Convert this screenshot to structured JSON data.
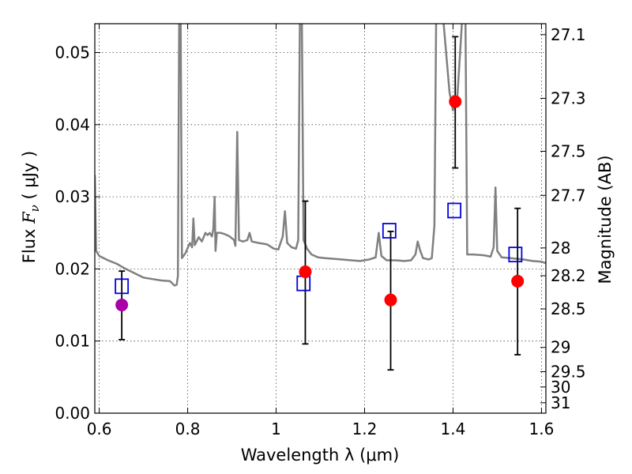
{
  "chart_data": {
    "type": "scatter",
    "xlabel": "Wavelength  λ (μm)",
    "ylabel": "Flux  F_ν  ( μJy )",
    "ylabel_right": "Magnitude (AB)",
    "xlim": [
      0.59,
      1.61
    ],
    "ylim": [
      0.0,
      0.054
    ],
    "grid": true,
    "x_ticks": [
      {
        "value": 0.6,
        "label": "0.6"
      },
      {
        "value": 0.8,
        "label": "0.8"
      },
      {
        "value": 1.0,
        "label": "1"
      },
      {
        "value": 1.2,
        "label": "1.2"
      },
      {
        "value": 1.4,
        "label": "1.4"
      },
      {
        "value": 1.6,
        "label": "1.6"
      }
    ],
    "y_ticks": [
      {
        "value": 0.0,
        "label": "0.00"
      },
      {
        "value": 0.01,
        "label": "0.01"
      },
      {
        "value": 0.02,
        "label": "0.02"
      },
      {
        "value": 0.03,
        "label": "0.03"
      },
      {
        "value": 0.04,
        "label": "0.04"
      },
      {
        "value": 0.05,
        "label": "0.05"
      }
    ],
    "right_ticks": [
      {
        "mag": 27.1,
        "label": "27.1"
      },
      {
        "mag": 27.3,
        "label": "27.3"
      },
      {
        "mag": 27.5,
        "label": "27.5"
      },
      {
        "mag": 27.7,
        "label": "27.7"
      },
      {
        "mag": 28.0,
        "label": "28"
      },
      {
        "mag": 28.2,
        "label": "28.2"
      },
      {
        "mag": 28.5,
        "label": "28.5"
      },
      {
        "mag": 29.0,
        "label": "29"
      },
      {
        "mag": 29.5,
        "label": "29.5"
      },
      {
        "mag": 30.0,
        "label": "30"
      },
      {
        "mag": 31.0,
        "label": "31"
      }
    ],
    "spectrum": {
      "color": "#808080",
      "points": [
        [
          0.59,
          0.033
        ],
        [
          0.593,
          0.0225
        ],
        [
          0.6,
          0.0218
        ],
        [
          0.62,
          0.0212
        ],
        [
          0.64,
          0.0207
        ],
        [
          0.66,
          0.02
        ],
        [
          0.68,
          0.0194
        ],
        [
          0.7,
          0.0188
        ],
        [
          0.72,
          0.0186
        ],
        [
          0.74,
          0.0184
        ],
        [
          0.76,
          0.0183
        ],
        [
          0.77,
          0.0177
        ],
        [
          0.775,
          0.0178
        ],
        [
          0.778,
          0.019
        ],
        [
          0.781,
          0.056
        ],
        [
          0.784,
          0.056
        ],
        [
          0.787,
          0.0215
        ],
        [
          0.795,
          0.0222
        ],
        [
          0.805,
          0.0236
        ],
        [
          0.81,
          0.023
        ],
        [
          0.813,
          0.027
        ],
        [
          0.816,
          0.0233
        ],
        [
          0.825,
          0.0244
        ],
        [
          0.832,
          0.0238
        ],
        [
          0.84,
          0.025
        ],
        [
          0.845,
          0.0247
        ],
        [
          0.85,
          0.025
        ],
        [
          0.855,
          0.0245
        ],
        [
          0.858,
          0.0255
        ],
        [
          0.861,
          0.03
        ],
        [
          0.863,
          0.0225
        ],
        [
          0.866,
          0.025
        ],
        [
          0.875,
          0.025
        ],
        [
          0.885,
          0.0248
        ],
        [
          0.895,
          0.0245
        ],
        [
          0.905,
          0.024
        ],
        [
          0.908,
          0.0232
        ],
        [
          0.912,
          0.039
        ],
        [
          0.916,
          0.024
        ],
        [
          0.925,
          0.0238
        ],
        [
          0.935,
          0.024
        ],
        [
          0.94,
          0.025
        ],
        [
          0.945,
          0.0238
        ],
        [
          0.96,
          0.0236
        ],
        [
          0.98,
          0.0234
        ],
        [
          0.995,
          0.0228
        ],
        [
          1.005,
          0.0227
        ],
        [
          1.015,
          0.0245
        ],
        [
          1.02,
          0.028
        ],
        [
          1.025,
          0.0236
        ],
        [
          1.035,
          0.023
        ],
        [
          1.045,
          0.0228
        ],
        [
          1.05,
          0.024
        ],
        [
          1.054,
          0.056
        ],
        [
          1.058,
          0.056
        ],
        [
          1.062,
          0.024
        ],
        [
          1.07,
          0.0228
        ],
        [
          1.08,
          0.022
        ],
        [
          1.095,
          0.0216
        ],
        [
          1.11,
          0.0215
        ],
        [
          1.13,
          0.0214
        ],
        [
          1.15,
          0.0213
        ],
        [
          1.17,
          0.0212
        ],
        [
          1.19,
          0.0211
        ],
        [
          1.21,
          0.0213
        ],
        [
          1.225,
          0.0216
        ],
        [
          1.232,
          0.025
        ],
        [
          1.238,
          0.0218
        ],
        [
          1.25,
          0.0212
        ],
        [
          1.27,
          0.0212
        ],
        [
          1.29,
          0.0211
        ],
        [
          1.305,
          0.0212
        ],
        [
          1.315,
          0.022
        ],
        [
          1.32,
          0.0238
        ],
        [
          1.326,
          0.0225
        ],
        [
          1.332,
          0.0215
        ],
        [
          1.345,
          0.0213
        ],
        [
          1.352,
          0.0215
        ],
        [
          1.358,
          0.026
        ],
        [
          1.362,
          0.056
        ],
        [
          1.376,
          0.056
        ],
        [
          1.392,
          0.0445
        ],
        [
          1.4,
          0.042
        ],
        [
          1.41,
          0.044
        ],
        [
          1.422,
          0.056
        ],
        [
          1.428,
          0.056
        ],
        [
          1.432,
          0.022
        ],
        [
          1.445,
          0.022
        ],
        [
          1.47,
          0.0219
        ],
        [
          1.485,
          0.0217
        ],
        [
          1.492,
          0.023
        ],
        [
          1.496,
          0.0313
        ],
        [
          1.5,
          0.0225
        ],
        [
          1.51,
          0.0216
        ],
        [
          1.53,
          0.0215
        ],
        [
          1.56,
          0.0213
        ],
        [
          1.58,
          0.0211
        ],
        [
          1.6,
          0.021
        ],
        [
          1.61,
          0.0208
        ]
      ]
    },
    "filled_points": [
      {
        "x": 0.651,
        "y": 0.015,
        "err_low": 0.0102,
        "err_high": 0.0197,
        "color": "#aa00aa"
      },
      {
        "x": 1.066,
        "y": 0.0196,
        "err_low": 0.0096,
        "err_high": 0.0294,
        "color": "#ff0000"
      },
      {
        "x": 1.259,
        "y": 0.0157,
        "err_low": 0.006,
        "err_high": 0.0252,
        "color": "#ff0000"
      },
      {
        "x": 1.405,
        "y": 0.0432,
        "err_low": 0.034,
        "err_high": 0.0522,
        "color": "#ff0000"
      },
      {
        "x": 1.546,
        "y": 0.0183,
        "err_low": 0.0081,
        "err_high": 0.0284,
        "color": "#ff0000"
      }
    ],
    "open_squares": [
      {
        "x": 0.651,
        "y": 0.0176,
        "color": "#0000dd"
      },
      {
        "x": 1.062,
        "y": 0.018,
        "color": "#0000dd"
      },
      {
        "x": 1.256,
        "y": 0.0253,
        "color": "#0000dd"
      },
      {
        "x": 1.403,
        "y": 0.0281,
        "color": "#0000dd"
      },
      {
        "x": 1.541,
        "y": 0.022,
        "color": "#0000dd"
      }
    ]
  }
}
